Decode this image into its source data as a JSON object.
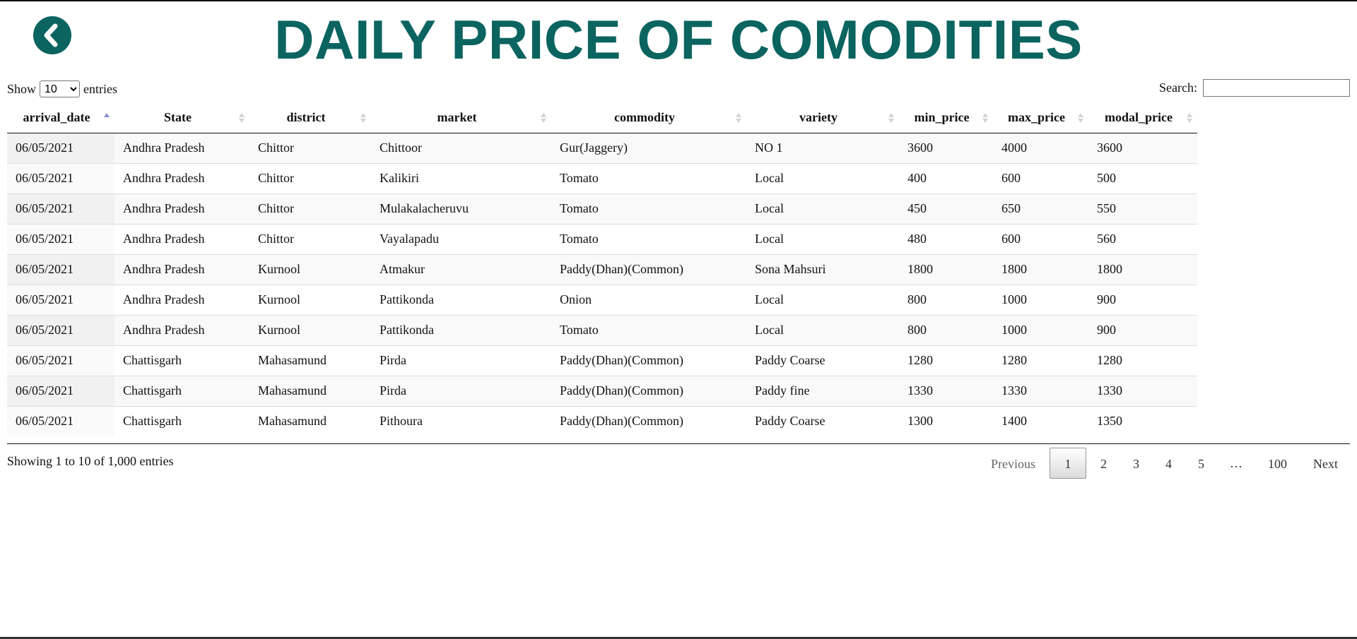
{
  "header": {
    "title": "DAILY PRICE OF COMODITIES",
    "back_icon": "chevron-left-icon",
    "accent_color": "#0b6460"
  },
  "length_control": {
    "prefix": "Show",
    "selected": "10",
    "suffix": "entries"
  },
  "search": {
    "label": "Search:",
    "value": ""
  },
  "table": {
    "columns": [
      {
        "label": "arrival_date",
        "sort": "asc"
      },
      {
        "label": "State",
        "sort": "none"
      },
      {
        "label": "district",
        "sort": "none"
      },
      {
        "label": "market",
        "sort": "none"
      },
      {
        "label": "commodity",
        "sort": "none"
      },
      {
        "label": "variety",
        "sort": "none"
      },
      {
        "label": "min_price",
        "sort": "none"
      },
      {
        "label": "max_price",
        "sort": "none"
      },
      {
        "label": "modal_price",
        "sort": "none"
      }
    ],
    "rows": [
      [
        "06/05/2021",
        "Andhra Pradesh",
        "Chittor",
        "Chittoor",
        "Gur(Jaggery)",
        "NO 1",
        "3600",
        "4000",
        "3600"
      ],
      [
        "06/05/2021",
        "Andhra Pradesh",
        "Chittor",
        "Kalikiri",
        "Tomato",
        "Local",
        "400",
        "600",
        "500"
      ],
      [
        "06/05/2021",
        "Andhra Pradesh",
        "Chittor",
        "Mulakalacheruvu",
        "Tomato",
        "Local",
        "450",
        "650",
        "550"
      ],
      [
        "06/05/2021",
        "Andhra Pradesh",
        "Chittor",
        "Vayalapadu",
        "Tomato",
        "Local",
        "480",
        "600",
        "560"
      ],
      [
        "06/05/2021",
        "Andhra Pradesh",
        "Kurnool",
        "Atmakur",
        "Paddy(Dhan)(Common)",
        "Sona Mahsuri",
        "1800",
        "1800",
        "1800"
      ],
      [
        "06/05/2021",
        "Andhra Pradesh",
        "Kurnool",
        "Pattikonda",
        "Onion",
        "Local",
        "800",
        "1000",
        "900"
      ],
      [
        "06/05/2021",
        "Andhra Pradesh",
        "Kurnool",
        "Pattikonda",
        "Tomato",
        "Local",
        "800",
        "1000",
        "900"
      ],
      [
        "06/05/2021",
        "Chattisgarh",
        "Mahasamund",
        "Pirda",
        "Paddy(Dhan)(Common)",
        "Paddy Coarse",
        "1280",
        "1280",
        "1280"
      ],
      [
        "06/05/2021",
        "Chattisgarh",
        "Mahasamund",
        "Pirda",
        "Paddy(Dhan)(Common)",
        "Paddy fine",
        "1330",
        "1330",
        "1330"
      ],
      [
        "06/05/2021",
        "Chattisgarh",
        "Mahasamund",
        "Pithoura",
        "Paddy(Dhan)(Common)",
        "Paddy Coarse",
        "1300",
        "1400",
        "1350"
      ]
    ]
  },
  "footer": {
    "info": "Showing 1 to 10 of 1,000 entries",
    "pagination": {
      "previous": "Previous",
      "pages": [
        "1",
        "2",
        "3",
        "4",
        "5"
      ],
      "ellipsis": "…",
      "last": "100",
      "next": "Next",
      "current": "1"
    }
  }
}
